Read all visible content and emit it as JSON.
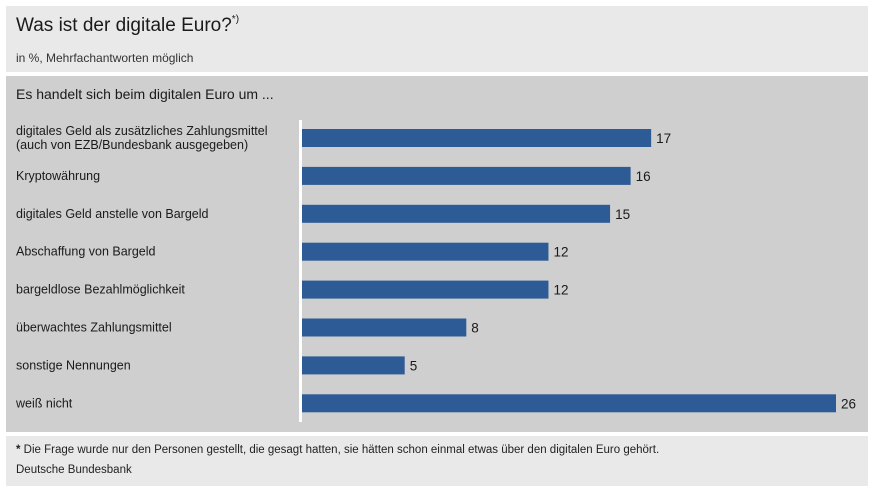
{
  "header": {
    "title": "Was ist der digitale Euro?",
    "title_sup": "*)",
    "subtitle": "in %, Mehrfachantworten möglich"
  },
  "chart_data": {
    "type": "bar",
    "orientation": "horizontal",
    "title": "Es handelt sich beim digitalen Euro um ...",
    "categories": [
      [
        "digitales Geld als zusätzliches Zahlungsmittel",
        "(auch von EZB/Bundesbank ausgegeben)"
      ],
      [
        "Kryptowährung"
      ],
      [
        "digitales Geld anstelle von Bargeld"
      ],
      [
        "Abschaffung von Bargeld"
      ],
      [
        "bargeldlose Bezahlmöglichkeit"
      ],
      [
        "überwachtes Zahlungsmittel"
      ],
      [
        "sonstige Nennungen"
      ],
      [
        "weiß nicht"
      ]
    ],
    "values": [
      17,
      16,
      15,
      12,
      12,
      8,
      5,
      26
    ],
    "xlim": [
      0,
      26
    ],
    "grid": false,
    "bar_color": "#2d5b96",
    "axis_color": "#ffffff"
  },
  "footer": {
    "footnote_marker": "*",
    "footnote": " Die Frage wurde nur den Personen gestellt, die gesagt hatten, sie hätten schon einmal etwas über den digitalen Euro gehört.",
    "source": "Deutsche Bundesbank"
  }
}
